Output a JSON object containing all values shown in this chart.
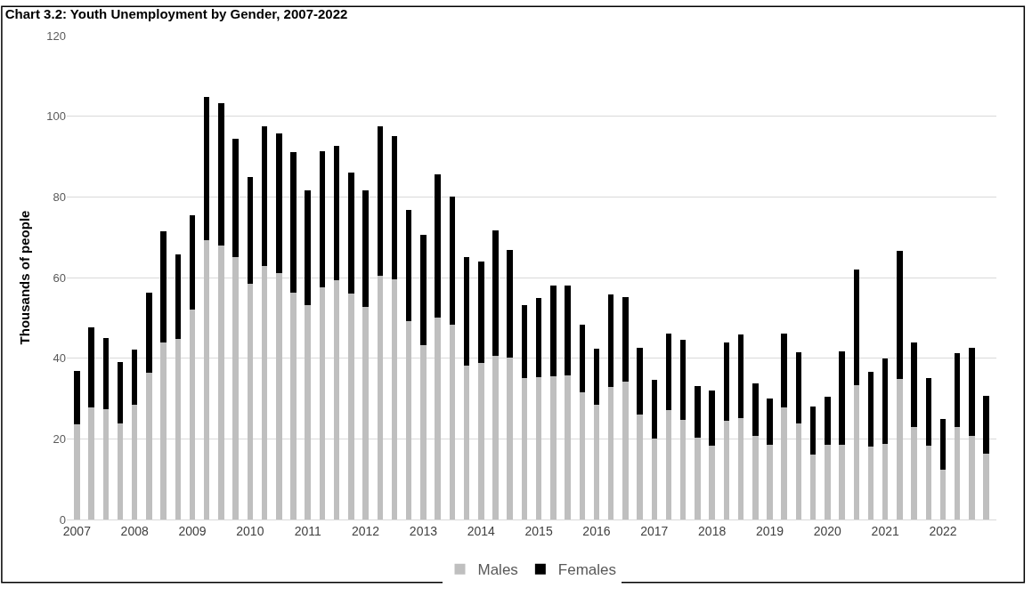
{
  "chart_data": {
    "type": "bar",
    "stacked": true,
    "title": "Chart 3.2: Youth Unemployment by Gender, 2007-2022",
    "ylabel": "Thousands of people",
    "categories": [
      "2007",
      null,
      null,
      null,
      "2008",
      null,
      null,
      null,
      "2009",
      null,
      null,
      null,
      "2010",
      null,
      null,
      null,
      "2011",
      null,
      null,
      null,
      "2012",
      null,
      null,
      null,
      "2013",
      null,
      null,
      null,
      "2014",
      null,
      null,
      null,
      "2015",
      null,
      null,
      null,
      "2016",
      null,
      null,
      null,
      "2017",
      null,
      null,
      null,
      "2018",
      null,
      null,
      null,
      "2019",
      null,
      null,
      null,
      "2020",
      null,
      null,
      null,
      "2021",
      null,
      null,
      null,
      "2022",
      null,
      null,
      null
    ],
    "series": [
      {
        "name": "Males",
        "color": "#bfbfbf",
        "values": [
          23.5,
          27.7,
          27.4,
          23.8,
          28.5,
          36.4,
          44.0,
          44.8,
          52.0,
          69.2,
          68.0,
          65.0,
          58.5,
          62.8,
          61.0,
          56.3,
          53.2,
          57.5,
          59.4,
          56.0,
          52.8,
          60.5,
          59.6,
          49.3,
          43.2,
          50.1,
          48.2,
          38.2,
          38.8,
          40.6,
          40.2,
          35.0,
          35.3,
          35.5,
          35.8,
          31.5,
          28.5,
          32.9,
          34.2,
          26.0,
          20.0,
          27.2,
          24.8,
          20.3,
          18.2,
          24.5,
          25.2,
          20.7,
          18.6,
          27.7,
          23.9,
          16.2,
          18.6,
          18.6,
          33.2,
          18.0,
          18.8,
          34.9,
          22.9,
          18.3,
          12.4,
          22.9,
          20.8,
          16.3
        ]
      },
      {
        "name": "Females",
        "color": "#000000",
        "values": [
          13.3,
          20.0,
          17.6,
          15.2,
          13.7,
          19.9,
          27.4,
          21.0,
          23.5,
          35.6,
          35.3,
          29.5,
          26.5,
          34.8,
          34.7,
          34.9,
          28.5,
          33.9,
          33.2,
          30.1,
          28.9,
          36.9,
          35.5,
          27.5,
          27.3,
          35.5,
          31.8,
          26.8,
          25.2,
          31.0,
          26.6,
          18.2,
          19.6,
          22.5,
          22.2,
          16.9,
          13.8,
          22.8,
          21.0,
          16.5,
          14.6,
          18.8,
          19.8,
          12.8,
          13.8,
          19.5,
          20.7,
          13.1,
          11.4,
          18.3,
          17.6,
          11.8,
          11.8,
          23.0,
          28.7,
          18.6,
          21.2,
          31.7,
          21.1,
          16.7,
          12.6,
          18.3,
          21.7,
          14.3
        ]
      }
    ],
    "ylim": [
      0,
      120
    ],
    "yticks": [
      0,
      20,
      40,
      60,
      80,
      100,
      120
    ],
    "grid": "y",
    "legend": "bottom"
  }
}
